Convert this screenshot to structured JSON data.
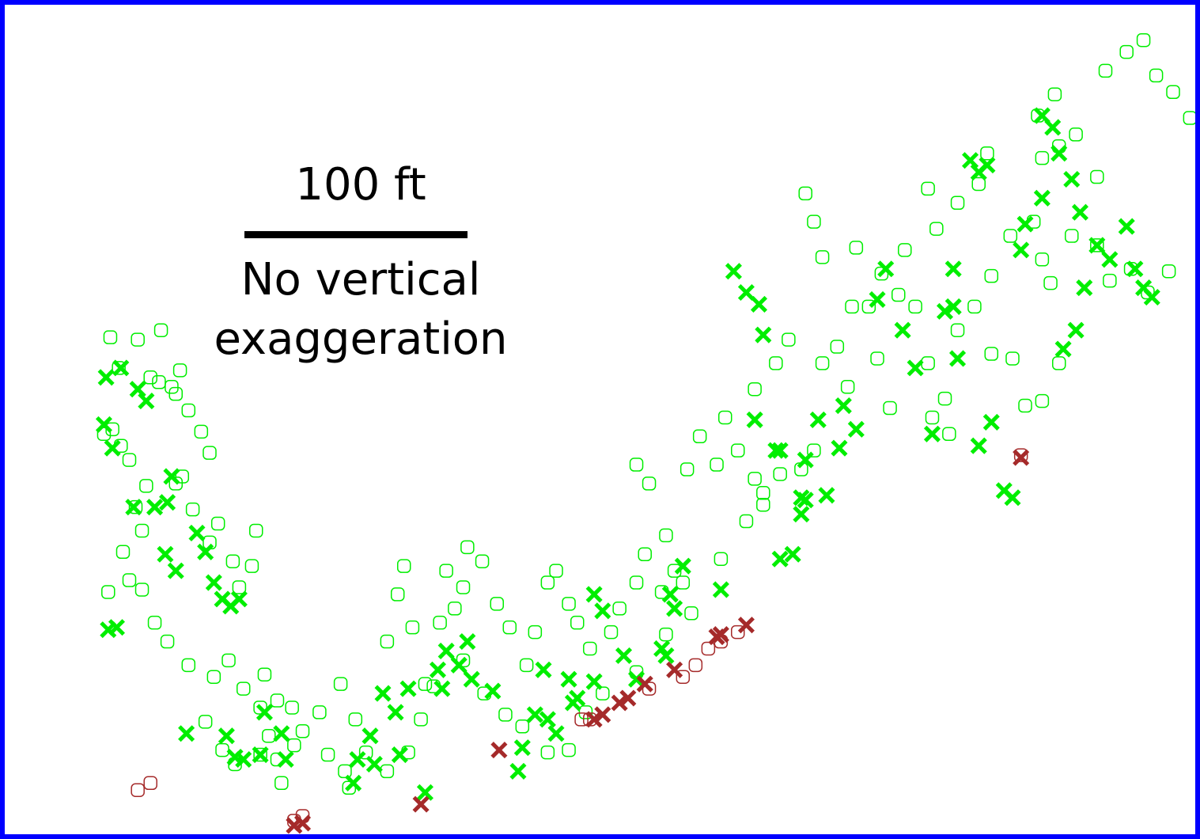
{
  "colors": {
    "frame": "#0000ff",
    "background": "#ffffff",
    "green": "#00ee00",
    "red": "#a52a2a",
    "text": "#000000"
  },
  "annotation": {
    "scale_label": "100 ft",
    "note_line1": "No vertical",
    "note_line2": "exaggeration"
  },
  "chart_data": {
    "type": "scatter",
    "title": "",
    "xlabel": "",
    "ylabel": "",
    "grid": false,
    "legend": "none",
    "units": "ft",
    "xlim": [
      0,
      535
    ],
    "ylim": [
      -345,
      0
    ],
    "series": [
      {
        "marker": "square-open",
        "color": "#00ee00",
        "points": [
          [
            29,
            -141
          ],
          [
            42,
            -142
          ],
          [
            53,
            -138
          ],
          [
            33,
            -154
          ],
          [
            48,
            -158
          ],
          [
            62,
            -155
          ],
          [
            30,
            -180
          ],
          [
            38,
            -193
          ],
          [
            46,
            -204
          ],
          [
            60,
            -203
          ],
          [
            41,
            -213
          ],
          [
            44,
            -223
          ],
          [
            68,
            -214
          ],
          [
            80,
            -220
          ],
          [
            87,
            -236
          ],
          [
            76,
            -228
          ],
          [
            96,
            -238
          ],
          [
            90,
            -247
          ],
          [
            63,
            -200
          ],
          [
            58,
            -162
          ],
          [
            35,
            -232
          ],
          [
            28,
            -249
          ],
          [
            98,
            -223
          ],
          [
            85,
            -278
          ],
          [
            92,
            -290
          ],
          [
            78,
            -285
          ],
          [
            100,
            -298
          ],
          [
            102,
            -284
          ],
          [
            104,
            -310
          ],
          [
            108,
            -320
          ],
          [
            110,
            -330
          ],
          [
            115,
            -298
          ],
          [
            128,
            -300
          ],
          [
            132,
            -318
          ],
          [
            140,
            -325
          ],
          [
            145,
            -303
          ],
          [
            138,
            -288
          ],
          [
            160,
            -270
          ],
          [
            165,
            -250
          ],
          [
            168,
            -238
          ],
          [
            172,
            -264
          ],
          [
            178,
            -288
          ],
          [
            185,
            -262
          ],
          [
            188,
            -240
          ],
          [
            192,
            -256
          ],
          [
            196,
            -247
          ],
          [
            198,
            -230
          ],
          [
            205,
            -236
          ],
          [
            212,
            -254
          ],
          [
            218,
            -264
          ],
          [
            226,
            -280
          ],
          [
            230,
            -266
          ],
          [
            236,
            -245
          ],
          [
            240,
            -240
          ],
          [
            246,
            -254
          ],
          [
            250,
            -262
          ],
          [
            256,
            -273
          ],
          [
            266,
            -266
          ],
          [
            270,
            -256
          ],
          [
            278,
            -245
          ],
          [
            282,
            -233
          ],
          [
            290,
            -249
          ],
          [
            296,
            -240
          ],
          [
            278,
            -195
          ],
          [
            284,
            -203
          ],
          [
            292,
            -225
          ],
          [
            302,
            -197
          ],
          [
            308,
            -183
          ],
          [
            316,
            -195
          ],
          [
            320,
            -175
          ],
          [
            326,
            -189
          ],
          [
            334,
            -201
          ],
          [
            338,
            -207
          ],
          [
            346,
            -199
          ],
          [
            356,
            -197
          ],
          [
            362,
            -189
          ],
          [
            366,
            -152
          ],
          [
            373,
            -145
          ],
          [
            378,
            -162
          ],
          [
            380,
            -128
          ],
          [
            382,
            -103
          ],
          [
            394,
            -114
          ],
          [
            402,
            -123
          ],
          [
            410,
            -128
          ],
          [
            416,
            -152
          ],
          [
            424,
            -167
          ],
          [
            430,
            -138
          ],
          [
            438,
            -128
          ],
          [
            446,
            -115
          ],
          [
            455,
            -98
          ],
          [
            466,
            -92
          ],
          [
            470,
            -108
          ],
          [
            474,
            -118
          ],
          [
            484,
            -98
          ],
          [
            496,
            -102
          ],
          [
            502,
            -117
          ],
          [
            512,
            -112
          ],
          [
            520,
            -122
          ],
          [
            530,
            -113
          ],
          [
            470,
            -65
          ],
          [
            478,
            -60
          ],
          [
            486,
            -55
          ],
          [
            496,
            -73
          ],
          [
            500,
            -28
          ],
          [
            510,
            -20
          ],
          [
            518,
            -15
          ],
          [
            524,
            -30
          ],
          [
            532,
            -37
          ],
          [
            540,
            -48
          ],
          [
            476,
            -38
          ],
          [
            468,
            -47
          ],
          [
            444,
            -63
          ],
          [
            440,
            -76
          ],
          [
            430,
            -84
          ],
          [
            420,
            -95
          ],
          [
            405,
            -104
          ],
          [
            388,
            -128
          ],
          [
            392,
            -150
          ],
          [
            398,
            -171
          ],
          [
            358,
            -80
          ],
          [
            362,
            -92
          ],
          [
            366,
            -107
          ],
          [
            350,
            -142
          ],
          [
            344,
            -152
          ],
          [
            334,
            -163
          ],
          [
            416,
            -78
          ],
          [
            418,
            -175
          ],
          [
            426,
            -182
          ],
          [
            446,
            -148
          ],
          [
            456,
            -150
          ],
          [
            462,
            -170
          ],
          [
            470,
            -168
          ],
          [
            478,
            -152
          ],
          [
            300,
            -245
          ],
          [
            304,
            -258
          ],
          [
            318,
            -235
          ],
          [
            330,
            -219
          ],
          [
            338,
            -212
          ],
          [
            292,
            -267
          ],
          [
            278,
            -283
          ],
          [
            262,
            -292
          ],
          [
            254,
            -300
          ],
          [
            246,
            -316
          ],
          [
            236,
            -317
          ],
          [
            224,
            -306
          ],
          [
            216,
            -301
          ],
          [
            206,
            -292
          ],
          [
            196,
            -278
          ],
          [
            182,
            -289
          ],
          [
            176,
            -303
          ],
          [
            170,
            -317
          ],
          [
            160,
            -325
          ],
          [
            150,
            -317
          ],
          [
            142,
            -332
          ],
          [
            120,
            -308
          ],
          [
            116,
            -314
          ],
          [
            108,
            -295
          ],
          [
            100,
            -318
          ],
          [
            88,
            -322
          ],
          [
            82,
            -316
          ],
          [
            74,
            -304
          ],
          [
            66,
            -280
          ],
          [
            56,
            -270
          ],
          [
            50,
            -262
          ],
          [
            44,
            -248
          ],
          [
            38,
            -244
          ],
          [
            26,
            -182
          ],
          [
            34,
            -187
          ],
          [
            52,
            -160
          ],
          [
            60,
            -165
          ],
          [
            66,
            -172
          ],
          [
            72,
            -181
          ],
          [
            76,
            -190
          ]
        ]
      },
      {
        "marker": "x",
        "color": "#00ee00",
        "points": [
          [
            27,
            -158
          ],
          [
            34,
            -154
          ],
          [
            42,
            -163
          ],
          [
            46,
            -168
          ],
          [
            26,
            -178
          ],
          [
            30,
            -188
          ],
          [
            40,
            -213
          ],
          [
            50,
            -213
          ],
          [
            56,
            -211
          ],
          [
            58,
            -200
          ],
          [
            55,
            -233
          ],
          [
            60,
            -240
          ],
          [
            70,
            -224
          ],
          [
            74,
            -232
          ],
          [
            78,
            -245
          ],
          [
            82,
            -252
          ],
          [
            86,
            -255
          ],
          [
            90,
            -252
          ],
          [
            28,
            -265
          ],
          [
            32,
            -264
          ],
          [
            65,
            -309
          ],
          [
            84,
            -310
          ],
          [
            88,
            -319
          ],
          [
            92,
            -320
          ],
          [
            100,
            -318
          ],
          [
            102,
            -300
          ],
          [
            110,
            -309
          ],
          [
            112,
            -320
          ],
          [
            144,
            -330
          ],
          [
            146,
            -320
          ],
          [
            152,
            -310
          ],
          [
            154,
            -322
          ],
          [
            158,
            -292
          ],
          [
            164,
            -300
          ],
          [
            166,
            -318
          ],
          [
            170,
            -290
          ],
          [
            178,
            -334
          ],
          [
            184,
            -282
          ],
          [
            186,
            -290
          ],
          [
            188,
            -274
          ],
          [
            194,
            -280
          ],
          [
            198,
            -270
          ],
          [
            222,
            -325
          ],
          [
            224,
            -315
          ],
          [
            230,
            -301
          ],
          [
            236,
            -303
          ],
          [
            240,
            -309
          ],
          [
            246,
            -286
          ],
          [
            248,
            -296
          ],
          [
            258,
            -250
          ],
          [
            262,
            -257
          ],
          [
            272,
            -276
          ],
          [
            278,
            -286
          ],
          [
            292,
            -276
          ],
          [
            294,
            -250
          ],
          [
            296,
            -256
          ],
          [
            300,
            -238
          ],
          [
            318,
            -248
          ],
          [
            346,
            -235
          ],
          [
            352,
            -233
          ],
          [
            356,
            -216
          ],
          [
            358,
            -193
          ],
          [
            358,
            -210
          ],
          [
            346,
            -189
          ],
          [
            356,
            -209
          ],
          [
            364,
            -176
          ],
          [
            368,
            -208
          ],
          [
            374,
            -188
          ],
          [
            376,
            -170
          ],
          [
            382,
            -180
          ],
          [
            392,
            -125
          ],
          [
            396,
            -112
          ],
          [
            404,
            -138
          ],
          [
            410,
            -154
          ],
          [
            418,
            -182
          ],
          [
            424,
            -130
          ],
          [
            428,
            -128
          ],
          [
            430,
            -150
          ],
          [
            440,
            -187
          ],
          [
            446,
            -177
          ],
          [
            452,
            -206
          ],
          [
            456,
            -209
          ],
          [
            480,
            -146
          ],
          [
            486,
            -138
          ],
          [
            490,
            -120
          ],
          [
            496,
            -102
          ],
          [
            502,
            -108
          ],
          [
            510,
            -94
          ],
          [
            514,
            -112
          ],
          [
            518,
            -120
          ],
          [
            522,
            -124
          ],
          [
            460,
            -104
          ],
          [
            462,
            -93
          ],
          [
            470,
            -82
          ],
          [
            470,
            -47
          ],
          [
            475,
            -52
          ],
          [
            478,
            -63
          ],
          [
            484,
            -74
          ],
          [
            488,
            -88
          ],
          [
            444,
            -68
          ],
          [
            440,
            -71
          ],
          [
            436,
            -66
          ],
          [
            428,
            -112
          ],
          [
            324,
            -113
          ],
          [
            330,
            -122
          ],
          [
            336,
            -127
          ],
          [
            338,
            -140
          ],
          [
            334,
            -176
          ],
          [
            344,
            -189
          ],
          [
            290,
            -273
          ],
          [
            258,
            -287
          ],
          [
            250,
            -294
          ],
          [
            234,
            -282
          ],
          [
            210,
            -291
          ],
          [
            200,
            -286
          ]
        ]
      },
      {
        "marker": "square-open",
        "color": "#a52a2a",
        "points": [
          [
            42,
            -333
          ],
          [
            48,
            -330
          ],
          [
            116,
            -346
          ],
          [
            120,
            -344
          ],
          [
            252,
            -303
          ],
          [
            256,
            -303
          ],
          [
            284,
            -290
          ],
          [
            300,
            -285
          ],
          [
            306,
            -280
          ],
          [
            312,
            -273
          ],
          [
            318,
            -270
          ],
          [
            326,
            -266
          ],
          [
            460,
            -191
          ]
        ]
      },
      {
        "marker": "x",
        "color": "#a52a2a",
        "points": [
          [
            116,
            -348
          ],
          [
            120,
            -347
          ],
          [
            176,
            -339
          ],
          [
            213,
            -316
          ],
          [
            258,
            -303
          ],
          [
            262,
            -301
          ],
          [
            270,
            -296
          ],
          [
            274,
            -294
          ],
          [
            282,
            -288
          ],
          [
            296,
            -282
          ],
          [
            316,
            -268
          ],
          [
            318,
            -267
          ],
          [
            330,
            -263
          ],
          [
            460,
            -192
          ]
        ]
      }
    ]
  }
}
